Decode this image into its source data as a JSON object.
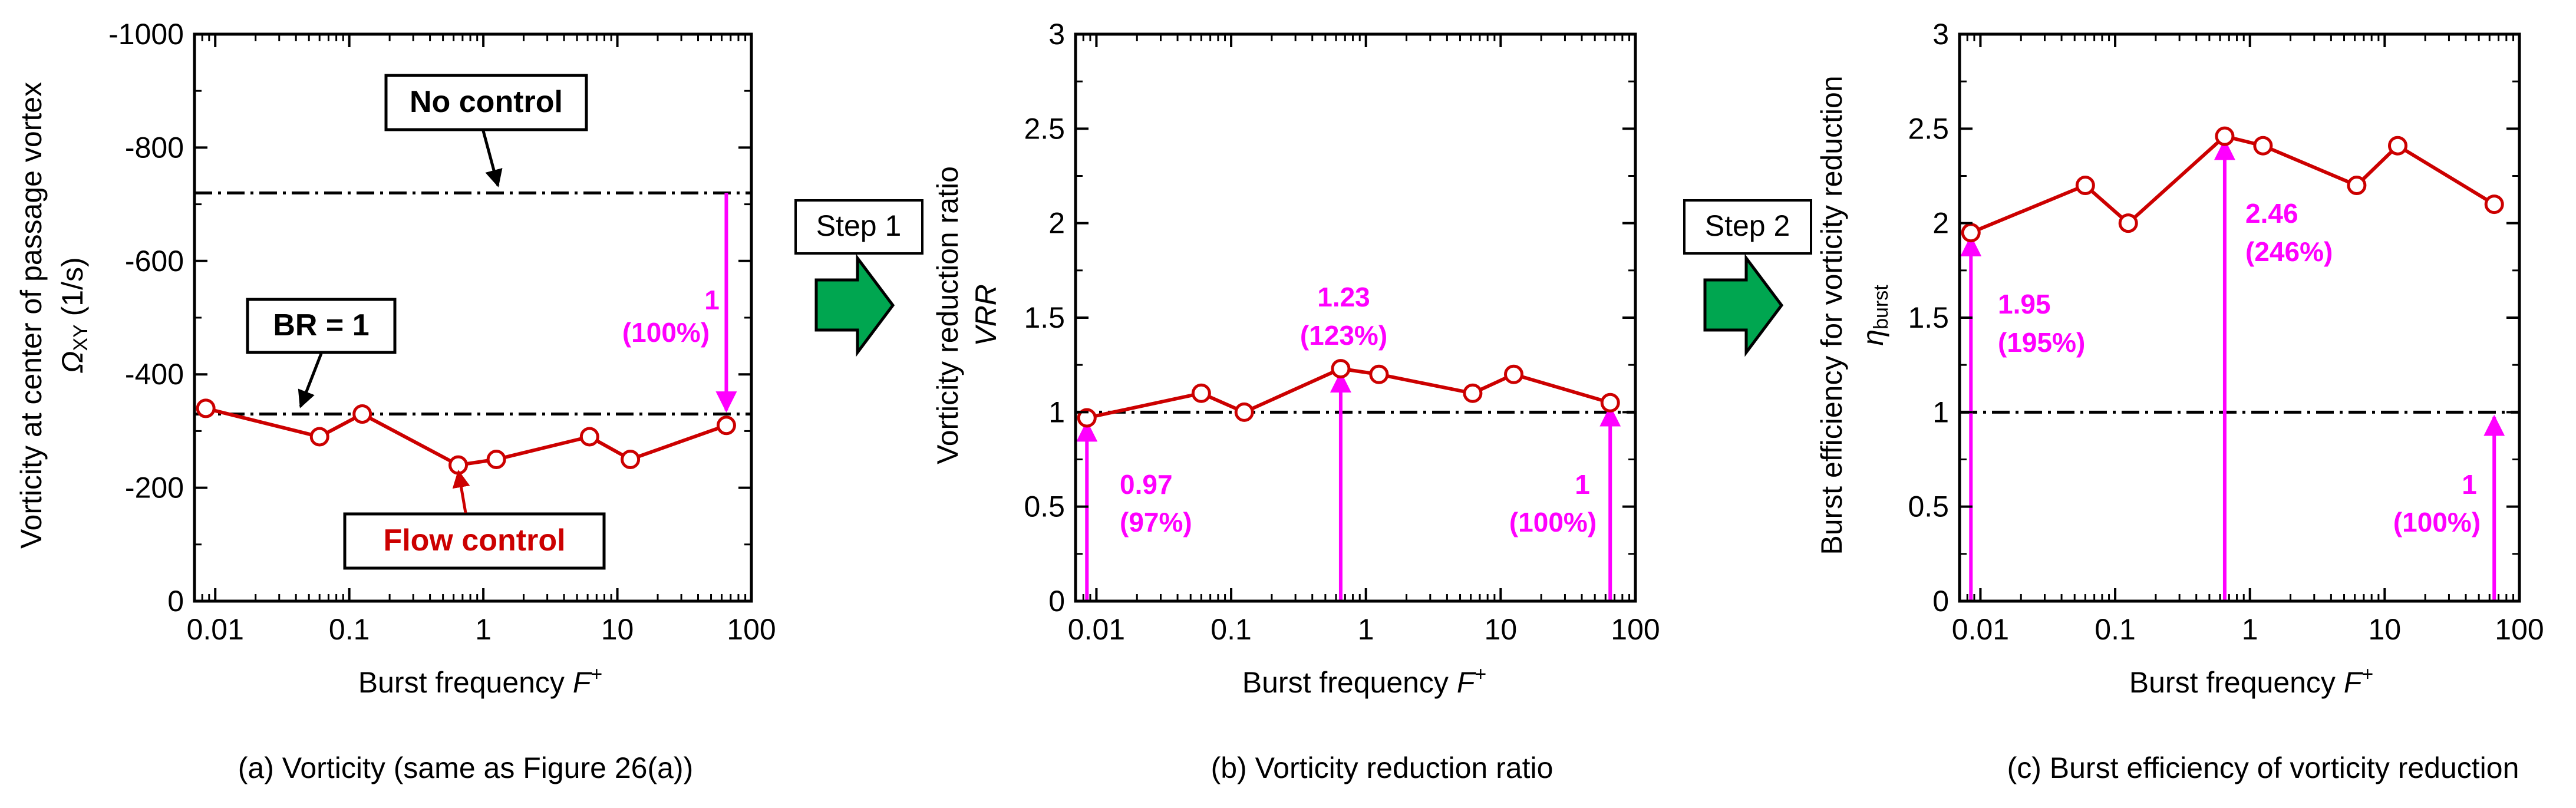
{
  "figure": {
    "step1_label": "Step 1",
    "step2_label": "Step 2",
    "colors": {
      "series": "#cc0000",
      "annotation": "#ff00ff",
      "reference": "#000000",
      "arrow_fill": "#00a650"
    }
  },
  "chart_data": [
    {
      "type": "line",
      "caption": "(a) Vorticity (same as Figure 26(a))",
      "xlabel": "Burst frequency F⁺",
      "ylabel_line1": "Vorticity at center of passage vortex",
      "ylabel_line2": "Ω",
      "ylabel_sub": "XY",
      "ylabel_unit": " (1/s)",
      "xscale": "log",
      "xlim": [
        0.007,
        100
      ],
      "ylim": [
        0,
        -1000
      ],
      "xticks": [
        0.01,
        0.1,
        1,
        10,
        100
      ],
      "xtick_labels": [
        "0.01",
        "0.1",
        "1",
        "10",
        "100"
      ],
      "yticks": [
        0,
        -200,
        -400,
        -600,
        -800,
        -1000
      ],
      "ytick_labels": [
        "0",
        "-200",
        "-400",
        "-600",
        "-800",
        "-1000"
      ],
      "series": [
        {
          "name": "Flow control",
          "x": [
            0.0085,
            0.06,
            0.125,
            0.65,
            1.25,
            6.2,
            12.5,
            65
          ],
          "y": [
            -340,
            -290,
            -330,
            -240,
            -250,
            -290,
            -250,
            -310
          ]
        }
      ],
      "ref_lines": [
        {
          "name": "No control",
          "y": -720
        },
        {
          "name": "BR = 1",
          "y": -330
        }
      ],
      "labels": {
        "no_control": "No control",
        "br1": "BR = 1",
        "flow_control": "Flow control",
        "ann_value": "1",
        "ann_pct": "(100%)"
      },
      "annotations": [
        {
          "x": 65,
          "y_from": -720,
          "y_to": -330,
          "value": "1",
          "pct": "(100%)"
        }
      ]
    },
    {
      "type": "line",
      "caption": "(b) Vorticity reduction ratio",
      "xlabel": "Burst frequency F⁺",
      "ylabel_line1": "Vorticity reduction ratio",
      "ylabel_line2": "VRR",
      "xscale": "log",
      "xlim": [
        0.007,
        100
      ],
      "ylim": [
        0,
        3
      ],
      "xticks": [
        0.01,
        0.1,
        1,
        10,
        100
      ],
      "xtick_labels": [
        "0.01",
        "0.1",
        "1",
        "10",
        "100"
      ],
      "yticks": [
        0,
        0.5,
        1,
        1.5,
        2,
        2.5,
        3
      ],
      "ytick_labels": [
        "0",
        "0.5",
        "1",
        "1.5",
        "2",
        "2.5",
        "3"
      ],
      "series": [
        {
          "name": "VRR",
          "x": [
            0.0085,
            0.06,
            0.125,
            0.65,
            1.25,
            6.2,
            12.5,
            65
          ],
          "y": [
            0.97,
            1.1,
            1.0,
            1.23,
            1.2,
            1.1,
            1.2,
            1.05
          ]
        }
      ],
      "ref_lines": [
        {
          "name": "reference",
          "y": 1
        }
      ],
      "labels": {
        "ann1_value": "0.97",
        "ann1_pct": "(97%)",
        "ann2_value": "1.23",
        "ann2_pct": "(123%)",
        "ann3_value": "1",
        "ann3_pct": "(100%)"
      },
      "annotations": [
        {
          "x": 0.0085,
          "y": 0.97,
          "value": "0.97",
          "pct": "(97%)"
        },
        {
          "x": 0.65,
          "y": 1.23,
          "value": "1.23",
          "pct": "(123%)"
        },
        {
          "x": 65,
          "y": 1.05,
          "value": "1",
          "pct": "(100%)"
        }
      ]
    },
    {
      "type": "line",
      "caption": "(c) Burst efficiency of vorticity reduction",
      "xlabel": "Burst frequency F⁺",
      "ylabel_line1": "Burst efficiency for vorticity reduction",
      "ylabel_line2": "η",
      "ylabel_sub": "burst",
      "xscale": "log",
      "xlim": [
        0.007,
        100
      ],
      "ylim": [
        0,
        3
      ],
      "xticks": [
        0.01,
        0.1,
        1,
        10,
        100
      ],
      "xtick_labels": [
        "0.01",
        "0.1",
        "1",
        "10",
        "100"
      ],
      "yticks": [
        0,
        0.5,
        1,
        1.5,
        2,
        2.5,
        3
      ],
      "ytick_labels": [
        "0",
        "0.5",
        "1",
        "1.5",
        "2",
        "2.5",
        "3"
      ],
      "series": [
        {
          "name": "η_burst",
          "x": [
            0.0085,
            0.06,
            0.125,
            0.65,
            1.25,
            6.2,
            12.5,
            65
          ],
          "y": [
            1.95,
            2.2,
            2.0,
            2.46,
            2.41,
            2.2,
            2.41,
            2.1
          ]
        }
      ],
      "ref_lines": [
        {
          "name": "reference",
          "y": 1
        }
      ],
      "labels": {
        "ann1_value": "1.95",
        "ann1_pct": "(195%)",
        "ann2_value": "2.46",
        "ann2_pct": "(246%)",
        "ann3_value": "1",
        "ann3_pct": "(100%)"
      },
      "annotations": [
        {
          "x": 0.0085,
          "y": 1.95,
          "value": "1.95",
          "pct": "(195%)"
        },
        {
          "x": 0.65,
          "y": 2.46,
          "value": "2.46",
          "pct": "(246%)"
        },
        {
          "x": 65,
          "y": 1.0,
          "value": "1",
          "pct": "(100%)"
        }
      ]
    }
  ]
}
